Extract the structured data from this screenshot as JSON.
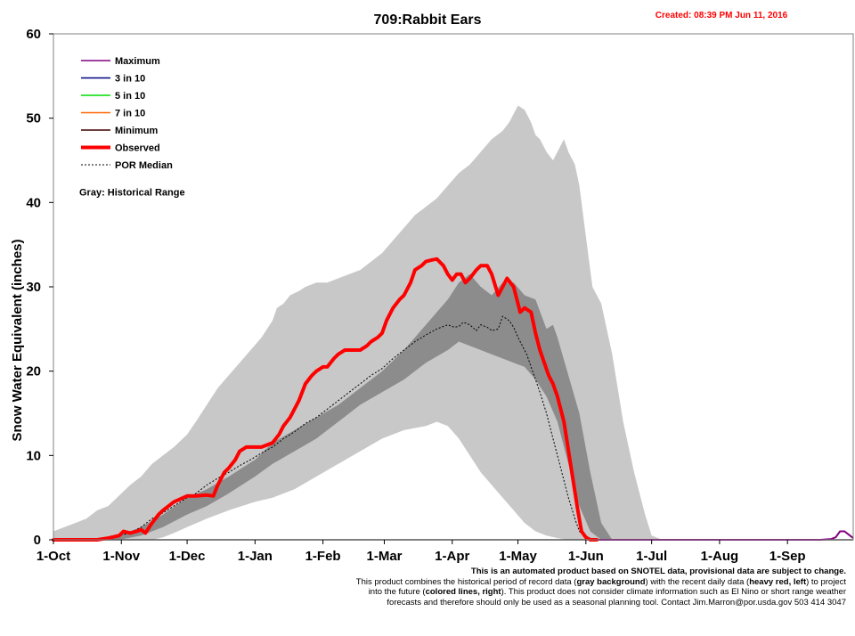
{
  "chart_data": {
    "type": "area",
    "title": "709:Rabbit Ears",
    "created": "Created: 08:39 PM Jun 11, 2016",
    "ylabel": "Snow Water Equivalent (inches)",
    "xlabel": "",
    "ylim": [
      0,
      60
    ],
    "yticks": [
      0,
      10,
      20,
      30,
      40,
      50,
      60
    ],
    "xlim_days": [
      0,
      365
    ],
    "x_ticks": [
      {
        "label": "1-Oct",
        "day": 0
      },
      {
        "label": "1-Nov",
        "day": 31
      },
      {
        "label": "1-Dec",
        "day": 61
      },
      {
        "label": "1-Jan",
        "day": 92
      },
      {
        "label": "1-Feb",
        "day": 123
      },
      {
        "label": "1-Mar",
        "day": 151
      },
      {
        "label": "1-Apr",
        "day": 182
      },
      {
        "label": "1-May",
        "day": 212
      },
      {
        "label": "1-Jun",
        "day": 243
      },
      {
        "label": "1-Jul",
        "day": 273
      },
      {
        "label": "1-Aug",
        "day": 304
      },
      {
        "label": "1-Sep",
        "day": 335
      }
    ],
    "grid": false,
    "legend_position": "top-left",
    "legend": [
      {
        "label": "Maximum",
        "color": "#800080",
        "style": "solid",
        "width": 1.5
      },
      {
        "label": "3 in 10",
        "color": "#000080",
        "style": "solid",
        "width": 1.5
      },
      {
        "label": "5 in 10",
        "color": "#00dd00",
        "style": "solid",
        "width": 1.5
      },
      {
        "label": "7 in 10",
        "color": "#ff6600",
        "style": "solid",
        "width": 1.5
      },
      {
        "label": "Minimum",
        "color": "#400000",
        "style": "solid",
        "width": 1.5
      },
      {
        "label": "Observed",
        "color": "#ff0000",
        "style": "solid",
        "width": 4
      },
      {
        "label": "POR Median",
        "color": "#000000",
        "style": "dashed",
        "width": 1
      }
    ],
    "legend_note": "Gray: Historical Range",
    "colors": {
      "historical_range": "#c8c8c8",
      "inner_range": "#8c8c8c",
      "observed": "#ff0000",
      "median": "#000000",
      "maximum": "#800080"
    },
    "series": [
      {
        "name": "Historical Range (max)",
        "role": "range_upper",
        "x": [
          0,
          5,
          10,
          15,
          20,
          25,
          31,
          35,
          40,
          45,
          50,
          55,
          61,
          65,
          70,
          75,
          80,
          85,
          90,
          95,
          100,
          102,
          105,
          108,
          112,
          115,
          120,
          125,
          130,
          135,
          140,
          145,
          150,
          155,
          160,
          165,
          170,
          175,
          180,
          185,
          190,
          195,
          200,
          205,
          208,
          210,
          212,
          215,
          218,
          220,
          222,
          225,
          228,
          230,
          233,
          235,
          238,
          240,
          243,
          246,
          250,
          255,
          260,
          265,
          270,
          273,
          278
        ],
        "values": [
          1.0,
          1.5,
          2.0,
          2.5,
          3.5,
          4.0,
          5.5,
          6.5,
          7.5,
          9.0,
          10.0,
          11.0,
          12.5,
          14.0,
          16.0,
          18.0,
          19.5,
          21.0,
          22.5,
          24.0,
          26.0,
          27.5,
          28.0,
          29.0,
          29.5,
          30.0,
          30.5,
          30.5,
          31.0,
          31.5,
          32.0,
          33.0,
          34.0,
          35.5,
          37.0,
          38.5,
          39.5,
          40.5,
          42.0,
          43.5,
          44.5,
          46.0,
          47.5,
          48.5,
          49.5,
          50.5,
          51.5,
          51.0,
          49.5,
          48.0,
          47.5,
          46.0,
          45.0,
          46.0,
          47.5,
          46.0,
          44.5,
          42.0,
          36.0,
          30.0,
          28.0,
          22.0,
          14.0,
          8.0,
          3.0,
          0.5,
          0.0
        ]
      },
      {
        "name": "Historical Range (min)",
        "role": "range_lower",
        "x": [
          0,
          40,
          45,
          50,
          55,
          61,
          70,
          80,
          92,
          100,
          110,
          120,
          130,
          140,
          150,
          160,
          170,
          175,
          180,
          185,
          190,
          195,
          200,
          205,
          210,
          215,
          220,
          225,
          230,
          235,
          240,
          245,
          250
        ],
        "values": [
          0,
          0,
          0,
          0.3,
          0.8,
          1.5,
          2.5,
          3.5,
          4.5,
          5.0,
          6.0,
          7.5,
          9.0,
          10.5,
          12.0,
          13.0,
          13.5,
          14.0,
          13.5,
          12.0,
          10.0,
          8.0,
          6.5,
          5.0,
          3.5,
          2.0,
          1.0,
          0.5,
          0.2,
          0,
          0,
          0,
          0
        ]
      },
      {
        "name": "Inner Range (upper)",
        "role": "inner_upper",
        "x": [
          20,
          30,
          40,
          50,
          61,
          70,
          80,
          92,
          100,
          110,
          120,
          130,
          140,
          150,
          160,
          170,
          180,
          185,
          190,
          195,
          200,
          205,
          210,
          215,
          220,
          225,
          228,
          230,
          235,
          240,
          245,
          250,
          255
        ],
        "values": [
          0,
          0.5,
          1.5,
          3.0,
          5.0,
          6.0,
          7.5,
          9.5,
          11.5,
          13.0,
          14.5,
          16.0,
          18.0,
          20.0,
          22.5,
          25.5,
          28.5,
          30.5,
          31.5,
          30.0,
          29.0,
          30.5,
          30.5,
          29.0,
          28.5,
          25.0,
          25.5,
          24.0,
          19.5,
          15.0,
          8.0,
          2.0,
          0.0
        ]
      },
      {
        "name": "Inner Range (lower)",
        "role": "inner_lower",
        "x": [
          30,
          40,
          50,
          61,
          70,
          80,
          92,
          100,
          110,
          120,
          130,
          140,
          150,
          160,
          170,
          180,
          185,
          190,
          195,
          200,
          205,
          210,
          215,
          220,
          225,
          230,
          235,
          240,
          245,
          250
        ],
        "values": [
          0,
          0.5,
          1.5,
          3.0,
          4.0,
          5.5,
          7.5,
          9.0,
          10.5,
          12.0,
          14.0,
          16.0,
          17.5,
          19.0,
          21.0,
          22.5,
          23.5,
          23.0,
          22.5,
          22.0,
          21.5,
          21.0,
          20.5,
          19.0,
          17.0,
          14.0,
          9.0,
          4.0,
          1.0,
          0.0
        ]
      },
      {
        "name": "POR Median",
        "role": "median",
        "x": [
          0,
          25,
          30,
          35,
          40,
          45,
          50,
          55,
          61,
          65,
          70,
          75,
          80,
          85,
          90,
          95,
          100,
          105,
          110,
          115,
          120,
          125,
          130,
          135,
          140,
          145,
          150,
          155,
          160,
          165,
          170,
          175,
          180,
          183,
          185,
          187,
          190,
          193,
          195,
          198,
          200,
          203,
          205,
          208,
          210,
          212,
          214,
          216,
          218,
          220,
          222,
          225,
          228,
          230,
          232,
          235,
          238,
          240,
          243,
          246,
          248,
          250
        ],
        "values": [
          0,
          0.2,
          0.5,
          0.8,
          1.5,
          2.5,
          3.2,
          4.0,
          5.0,
          5.5,
          6.5,
          7.3,
          8.0,
          8.8,
          9.5,
          10.3,
          11.0,
          12.0,
          12.8,
          13.8,
          14.5,
          15.5,
          16.5,
          17.5,
          18.5,
          19.5,
          20.3,
          21.5,
          22.5,
          23.5,
          24.3,
          25.0,
          25.5,
          25.2,
          25.3,
          25.8,
          25.5,
          24.8,
          25.5,
          25.2,
          24.8,
          25.0,
          26.5,
          26.0,
          25.2,
          24.0,
          23.0,
          22.0,
          20.5,
          19.0,
          17.5,
          15.0,
          12.0,
          10.0,
          8.0,
          5.0,
          2.5,
          1.0,
          0.3,
          0.0,
          0.0,
          0.0
        ]
      },
      {
        "name": "Observed",
        "role": "observed",
        "x": [
          0,
          20,
          25,
          30,
          32,
          35,
          38,
          40,
          42,
          45,
          48,
          50,
          55,
          61,
          65,
          70,
          73,
          75,
          78,
          80,
          83,
          85,
          88,
          90,
          92,
          95,
          100,
          103,
          105,
          108,
          110,
          112,
          115,
          118,
          120,
          123,
          125,
          128,
          130,
          133,
          135,
          138,
          140,
          143,
          145,
          148,
          150,
          152,
          155,
          158,
          160,
          163,
          165,
          168,
          170,
          173,
          175,
          178,
          180,
          182,
          184,
          186,
          188,
          190,
          193,
          195,
          198,
          200,
          203,
          205,
          207,
          210,
          212,
          213,
          215,
          218,
          220,
          222,
          224,
          226,
          228,
          230,
          233,
          236,
          239,
          241,
          243,
          245,
          248
        ],
        "values": [
          0,
          0,
          0.2,
          0.5,
          1.0,
          0.8,
          1.0,
          1.2,
          0.8,
          2.0,
          3.0,
          3.5,
          4.5,
          5.2,
          5.2,
          5.3,
          5.2,
          6.5,
          8.0,
          8.5,
          9.5,
          10.5,
          11.0,
          11.0,
          11.0,
          11.0,
          11.5,
          12.5,
          13.5,
          14.5,
          15.5,
          16.5,
          18.5,
          19.5,
          20.0,
          20.5,
          20.5,
          21.5,
          22.0,
          22.5,
          22.5,
          22.5,
          22.5,
          23.0,
          23.5,
          24.0,
          24.5,
          26.0,
          27.5,
          28.5,
          29.0,
          30.5,
          32.0,
          32.5,
          33.0,
          33.2,
          33.3,
          32.5,
          31.5,
          30.8,
          31.5,
          31.5,
          30.5,
          31.0,
          32.0,
          32.5,
          32.5,
          31.5,
          29.0,
          30.0,
          31.0,
          30.0,
          28.0,
          27.0,
          27.5,
          27.0,
          24.5,
          22.5,
          21.0,
          19.5,
          18.5,
          17.0,
          14.0,
          9.0,
          4.0,
          1.0,
          0.3,
          0.0,
          0.0
        ]
      },
      {
        "name": "Maximum",
        "role": "forecast_max",
        "x": [
          248,
          300,
          350,
          355,
          357,
          359,
          361,
          363,
          365
        ],
        "values": [
          0,
          0,
          0,
          0.1,
          0.3,
          1.0,
          1.0,
          0.6,
          0.2
        ]
      }
    ]
  },
  "footer": {
    "line1": "This is an automated product based on SNOTEL data, provisional data are subject to change.",
    "line2a": "This product combines the historical period of record data (",
    "line2b": "gray background",
    "line2c": ") with the recent daily data (",
    "line2d": "heavy red, left",
    "line2e": ") to project",
    "line3a": "into the future (",
    "line3b": "colored lines, right",
    "line3c": "). This product does not consider climate information such as El Nino  or short range weather",
    "line4": "forecasts and therefore should only be used as a seasonal planning tool. Contact Jim.Marron@por.usda.gov 503 414 3047"
  }
}
